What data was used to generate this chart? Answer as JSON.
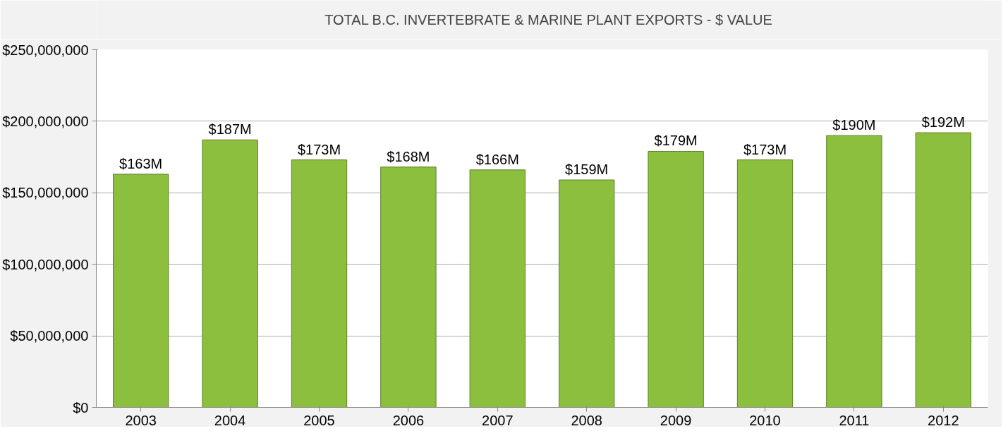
{
  "chart_data": {
    "type": "bar",
    "categories": [
      "2003",
      "2004",
      "2005",
      "2006",
      "2007",
      "2008",
      "2009",
      "2010",
      "2011",
      "2012"
    ],
    "series": [
      {
        "name": "TOTAL B.C. INVERTEBRATE & MARINE PLANT EXPORTS - $ VALUE",
        "color": "#8dbf3e",
        "values": [
          163000000,
          187000000,
          173000000,
          168000000,
          166000000,
          159000000,
          179000000,
          173000000,
          190000000,
          192000000
        ],
        "value_labels": [
          "$163M",
          "$187M",
          "$173M",
          "$168M",
          "$166M",
          "$159M",
          "$179M",
          "$173M",
          "$190M",
          "$192M"
        ]
      }
    ],
    "ylim": [
      0,
      250000000
    ],
    "yticks": [
      {
        "value": 0,
        "label": "$0"
      },
      {
        "value": 50000000,
        "label": "$50,000,000"
      },
      {
        "value": 100000000,
        "label": "$100,000,000"
      },
      {
        "value": 150000000,
        "label": "$150,000,000"
      },
      {
        "value": 200000000,
        "label": "$200,000,000"
      },
      {
        "value": 250000000,
        "label": "$250,000,000"
      }
    ],
    "grid": "y",
    "legend": "top"
  }
}
